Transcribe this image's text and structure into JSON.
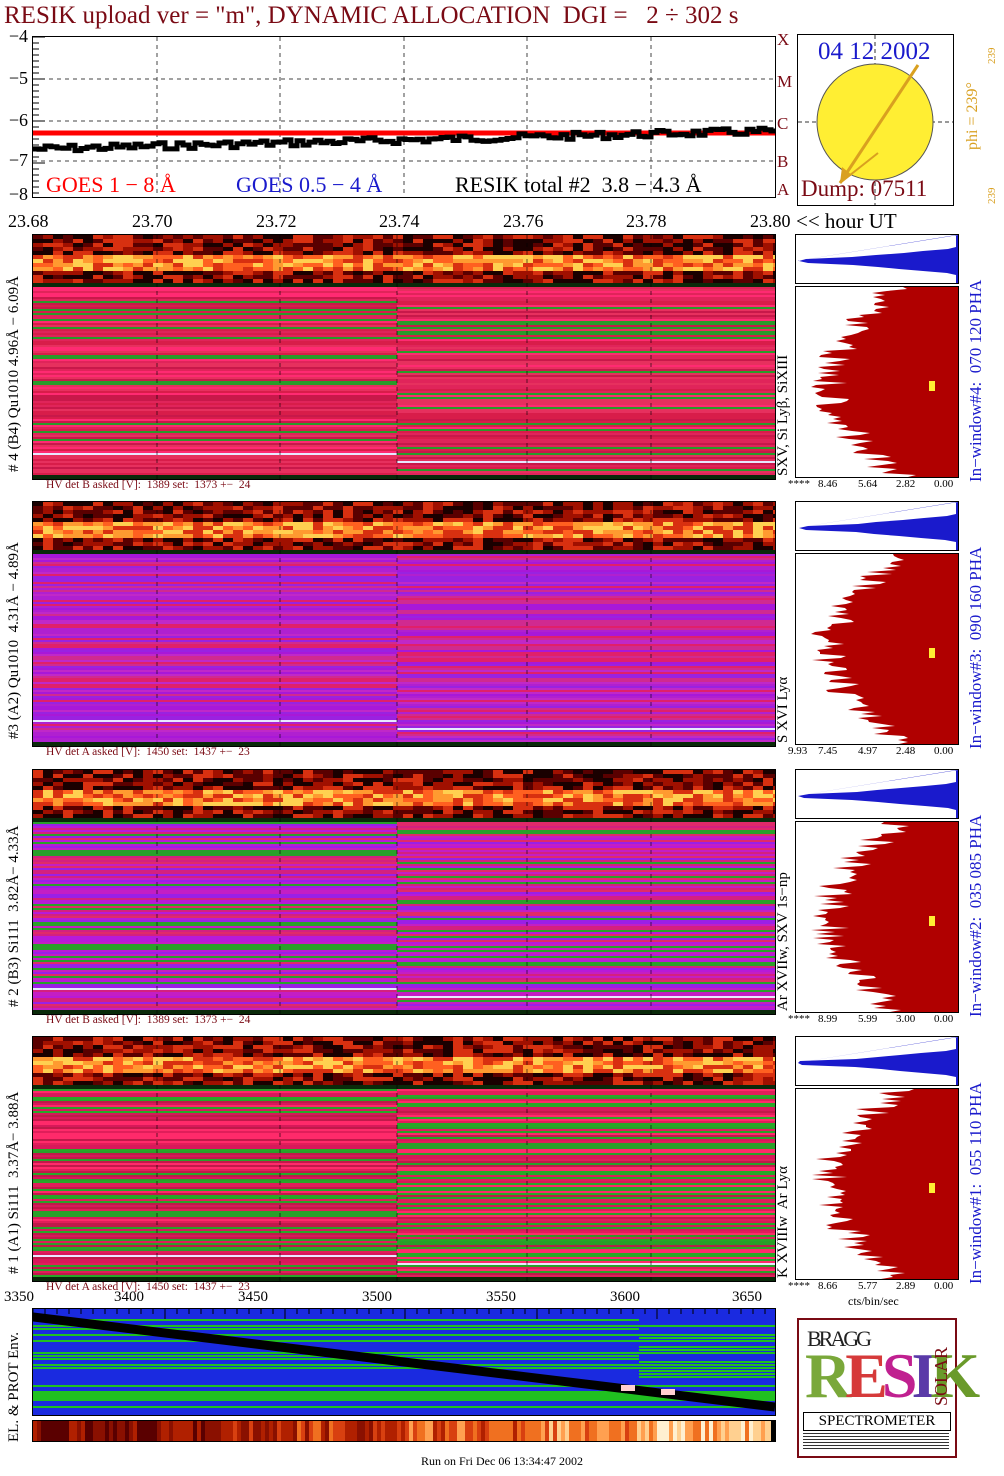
{
  "title": "RESIK upload ver = \"m\", DYNAMIC ALLOCATION  DGI =   2 ÷ 302 s",
  "colors": {
    "title": "#7a0a14",
    "goes_red": "#ff0000",
    "goes_blue": "#1a1acc",
    "hist_red": "#b00000",
    "hist_blue": "#1a1acc",
    "phi_orange": "#d9a020",
    "sun_yellow": "#ffee33"
  },
  "goes_plot": {
    "y_ticks": [
      "−4",
      "−5",
      "−6",
      "−7",
      "−8"
    ],
    "x_ticks": [
      "23.68",
      "23.70",
      "23.72",
      "23.74",
      "23.76",
      "23.78",
      "23.80"
    ],
    "x_unit": "<< hour UT",
    "class_letters": [
      "X",
      "M",
      "C",
      "B",
      "A"
    ],
    "legend_goes18": "GOES 1 − 8 Å",
    "legend_goes054": "GOES 0.5 − 4 Å",
    "legend_resik": "RESIK total #2  3.8 − 4.3 Å"
  },
  "sun_panel": {
    "date": "04 12 2002",
    "phi": "phi = 239°",
    "phi_top": "239",
    "phi_bottom": "239",
    "dump": "Dump: 07511"
  },
  "channels": [
    {
      "left_label": "# 4 (B4) Qu1010 4.96Å − 6.09Å",
      "lines_label": "SXV, Si Lyβ, SiXIII",
      "window_label": "In−window#4:  070 120 PHA",
      "hv": "HV det B asked [V]:  1389 set:  1373 +−  24",
      "hist_ticks": [
        "****",
        "8.46",
        "5.64",
        "2.82",
        "0.00"
      ]
    },
    {
      "left_label": "#3 (A2) Qu1010  4.31Å − 4.89Å",
      "lines_label": "S XVI Lyα",
      "window_label": "In−window#3:  090 160 PHA",
      "hv": "HV det A asked [V]:  1450 set:  1437 +−  23",
      "hist_ticks": [
        "9.93",
        "7.45",
        "4.97",
        "2.48",
        "0.00"
      ]
    },
    {
      "left_label": "# 2 (B3) Si111  3.82Å− 4.33Å",
      "lines_label": "Ar XVIIw, SXV 1s−np",
      "window_label": "In−window#2:  035 085 PHA",
      "hv": "HV det B asked [V]:  1389 set:  1373 +−  24",
      "hist_ticks": [
        "****",
        "8.99",
        "5.99",
        "3.00",
        "0.00"
      ]
    },
    {
      "left_label": "# 1 (A1) Si111  3.37Å− 3.88Å",
      "lines_label": "K XVIIIw  Ar Lyα",
      "window_label": "In−window#1:  055 110 PHA",
      "hv": "HV det A asked [V]:  1450 set:  1437 +−  23",
      "hist_ticks": [
        "****",
        "8.66",
        "5.77",
        "2.89",
        "0.00"
      ]
    }
  ],
  "hist_xlabel": "cts/bin/sec",
  "env_plot": {
    "x_ticks": [
      "3350",
      "3400",
      "3450",
      "3500",
      "3550",
      "3600",
      "3650"
    ],
    "ylabel": "EL. & PROT Env."
  },
  "logo": {
    "letters": "RESIK",
    "bragg": "BRAGG",
    "solar": "SOLAR",
    "spectrometer": "SPECTROMETER"
  },
  "footer": "Run on Fri Dec 06 13:34:47 2002"
}
